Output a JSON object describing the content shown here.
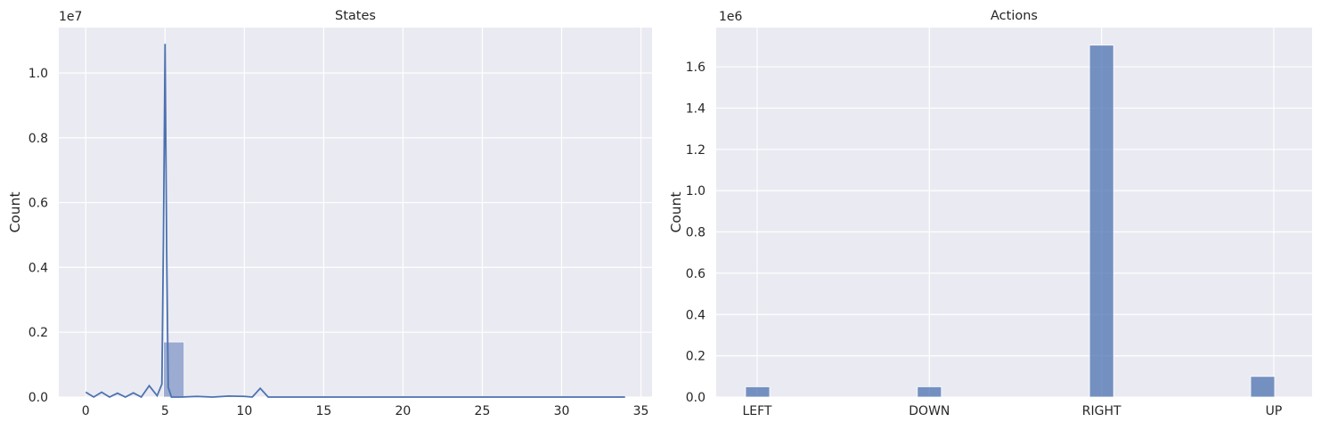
{
  "chart_data": [
    {
      "type": "bar",
      "title": "States",
      "xlabel": "",
      "ylabel": "Count",
      "y_offset_label": "1e7",
      "grid": true,
      "xlim": [
        -1.7,
        35.7
      ],
      "ylim": [
        0,
        1.14
      ],
      "xticks": [
        0,
        5,
        10,
        15,
        20,
        25,
        30,
        35
      ],
      "yticks": [
        0.0,
        0.2,
        0.4,
        0.6,
        0.8,
        1.0
      ],
      "tick_labels_y": [
        "0.0",
        "0.2",
        "0.4",
        "0.6",
        "0.8",
        "1.0"
      ],
      "tick_labels_x": [
        "0",
        "5",
        "10",
        "15",
        "20",
        "25",
        "30",
        "35"
      ],
      "bar_color": "#8da0cb",
      "kde_color": "#4c72b0",
      "bins": [
        {
          "x0": 4.9,
          "x1": 6.2,
          "value": 0.17
        },
        {
          "x0": 6.2,
          "x1": 7.5,
          "value": 0.001
        },
        {
          "x0": 7.5,
          "x1": 8.8,
          "value": 0.001
        },
        {
          "x0": 8.8,
          "x1": 10.1,
          "value": 0.001
        },
        {
          "x0": 16.6,
          "x1": 17.9,
          "value": 0.001
        }
      ],
      "kde": {
        "x": [
          0,
          0.5,
          1,
          1.5,
          2,
          2.5,
          3,
          3.5,
          4,
          4.5,
          4.8,
          4.9,
          5.0,
          5.1,
          5.2,
          5.4,
          6,
          7,
          8,
          9,
          10,
          10.5,
          11,
          11.5,
          12,
          13,
          15,
          20,
          25,
          30,
          34
        ],
        "y": [
          0.015,
          0.0,
          0.015,
          0.0,
          0.012,
          0.0,
          0.013,
          0.0,
          0.035,
          0.004,
          0.04,
          0.5,
          1.09,
          0.45,
          0.03,
          0.0,
          0.0,
          0.002,
          0.0,
          0.003,
          0.002,
          0.0,
          0.027,
          0.0,
          0.0,
          0.0,
          0.0,
          0.0,
          0.0,
          0.0,
          0.0
        ]
      }
    },
    {
      "type": "bar",
      "title": "Actions",
      "xlabel": "",
      "ylabel": "Count",
      "y_offset_label": "1e6",
      "grid": true,
      "ylim": [
        0,
        1.79
      ],
      "yticks": [
        0.0,
        0.2,
        0.4,
        0.6,
        0.8,
        1.0,
        1.2,
        1.4,
        1.6
      ],
      "tick_labels_y": [
        "0.0",
        "0.2",
        "0.4",
        "0.6",
        "0.8",
        "1.0",
        "1.2",
        "1.4",
        "1.6"
      ],
      "categories": [
        "LEFT",
        "DOWN",
        "RIGHT",
        "UP"
      ],
      "values": [
        0.05,
        0.05,
        1.705,
        0.1
      ],
      "bar_color": "#4c72b0"
    }
  ]
}
